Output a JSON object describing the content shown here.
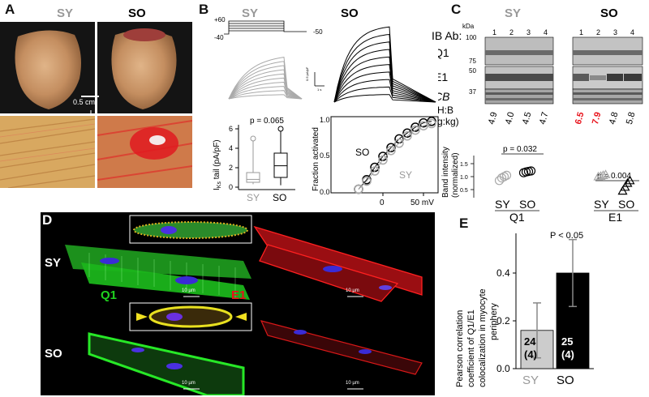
{
  "panelA": {
    "letter": "A",
    "col_sy": "SY",
    "col_so": "SO",
    "scale_bar": "0.5 cm"
  },
  "panelB": {
    "letter": "B",
    "title_sy": "SY",
    "title_so": "SO",
    "protocol": {
      "v_hold": "-40",
      "v_test": "+60",
      "v_tail": "-50"
    },
    "trace_scale_y": "0.5 pA/pF",
    "trace_scale_x": "1 s",
    "boxplot": {
      "ylabel_main": "I",
      "ylabel_sub": "Ks",
      "ylabel_rest": " tail (pA/pF)",
      "p_value": "p = 0.065",
      "yticks": [
        "0",
        "2",
        "4",
        "6"
      ],
      "categories": [
        "SY",
        "SO"
      ]
    },
    "activation": {
      "ylabel": "Fraction activated",
      "yticks": [
        "0.0",
        "0.5",
        "1.0"
      ],
      "xticks": [
        "0",
        "50 mV"
      ],
      "label_so": "SO",
      "label_sy": "SY"
    }
  },
  "panelC": {
    "letter": "C",
    "title_sy": "SY",
    "title_so": "SO",
    "ib_label": "IB Ab:",
    "kda": "kDa",
    "lanes": [
      "1",
      "2",
      "3",
      "4"
    ],
    "rows": [
      "Q1",
      "E1",
      "CB"
    ],
    "markers": [
      "100",
      "75",
      "50",
      "37"
    ],
    "hb_label_1": "H:B",
    "hb_label_2": "(g:kg)",
    "hb_sy": [
      "4.9",
      "4.0",
      "4.5",
      "4.7"
    ],
    "hb_so": [
      "6.5",
      "7.9",
      "4.8",
      "5.8"
    ],
    "hb_red_color": "#e8121b",
    "ylabel_1": "Band intensity",
    "ylabel_2": "(normalized)",
    "yticks": [
      "0.5",
      "1.0",
      "1.5"
    ],
    "p_q1": "p = 0.032",
    "p_e1": "p = 0.004",
    "x_sy": "SY",
    "x_so": "SO",
    "group_q1": "Q1",
    "group_e1": "E1"
  },
  "panelD": {
    "letter": "D",
    "row_sy": "SY",
    "row_so": "SO",
    "label_q1": "Q1",
    "label_e1": "E1",
    "scale": "10 µm",
    "green": "#1fd21f",
    "red": "#e8121b",
    "blue": "#3a2bd6"
  },
  "panelE": {
    "letter": "E",
    "ylabel": [
      "Pearson correlation",
      "coefficient of Q1/E1",
      "colocalization in myocyte",
      "periphery"
    ],
    "p_value": "P < 0.05",
    "yticks": [
      "0.0",
      "0.2",
      "0.4"
    ],
    "bar_labels": [
      {
        "n": "24",
        "k": "(4)"
      },
      {
        "n": "25",
        "k": "(4)"
      }
    ]
  },
  "chart_data": [
    {
      "type": "bar",
      "title": "",
      "ylabel": "Pearson correlation coefficient of Q1/E1 colocalization in myocyte periphery",
      "categories": [
        "SY",
        "SO"
      ],
      "values": [
        0.16,
        0.4
      ],
      "error": [
        0.115,
        0.14
      ],
      "ylim": [
        0.0,
        0.5
      ],
      "colors": [
        "#cccccc",
        "#000000"
      ]
    },
    {
      "type": "scatter",
      "ylabel": "Band intensity (normalized)",
      "groups": [
        "Q1",
        "E1"
      ],
      "series": [
        {
          "group": "Q1",
          "x": "SY",
          "values": [
            0.85,
            0.95,
            1.0,
            1.05
          ]
        },
        {
          "group": "Q1",
          "x": "SO",
          "values": [
            1.15,
            1.18,
            1.2,
            1.22
          ]
        },
        {
          "group": "E1",
          "x": "SY",
          "values": [
            1.0,
            1.02,
            1.05,
            1.08
          ]
        },
        {
          "group": "E1",
          "x": "SO",
          "values": [
            0.45,
            0.6,
            0.75,
            0.85
          ]
        }
      ]
    },
    {
      "type": "line",
      "ylabel": "Fraction activated",
      "ylim": [
        0,
        1.0
      ],
      "series": [
        {
          "name": "SO",
          "x": [
            -30,
            -20,
            -10,
            0,
            10,
            20,
            30,
            40,
            50,
            60
          ],
          "values": [
            0.05,
            0.18,
            0.35,
            0.5,
            0.62,
            0.74,
            0.82,
            0.9,
            0.96,
            0.98
          ]
        },
        {
          "name": "SY",
          "x": [
            -30,
            -20,
            -10,
            0,
            10,
            20,
            30,
            40,
            50,
            60
          ],
          "values": [
            0.05,
            0.16,
            0.3,
            0.45,
            0.58,
            0.68,
            0.78,
            0.86,
            0.92,
            0.95
          ]
        }
      ]
    },
    {
      "type": "box",
      "ylabel": "IKs tail (pA/pF)",
      "categories": [
        "SY",
        "SO"
      ],
      "boxes": [
        {
          "min": 0.3,
          "q1": 0.5,
          "median": 0.8,
          "q3": 1.5,
          "max": 5.0
        },
        {
          "min": 0.2,
          "q1": 1.0,
          "median": 2.2,
          "q3": 3.5,
          "max": 6.0
        }
      ]
    }
  ]
}
